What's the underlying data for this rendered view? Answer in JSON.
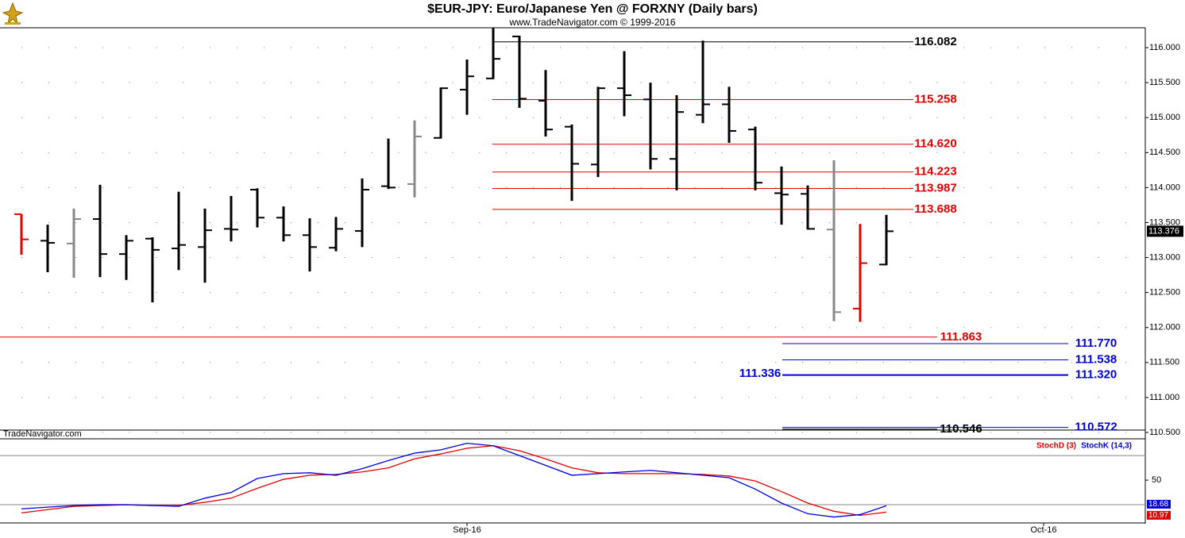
{
  "chart_data": [
    {
      "type": "ohlc",
      "title": "$EUR-JPY:  Euro/Japanese Yen @ FORXNY  (Daily bars)",
      "subtitle": "www.TradeNavigator.com © 1999-2016",
      "watermark": "TradeNavigator.com",
      "categories": [
        null,
        null,
        null,
        null,
        null,
        null,
        null,
        null,
        null,
        null,
        null,
        null,
        null,
        null,
        null,
        null,
        null,
        null,
        null,
        null,
        null,
        null,
        null,
        null,
        null,
        null,
        null,
        null,
        null,
        null,
        null,
        null,
        null,
        null
      ],
      "open": [
        113.62,
        113.24,
        113.2,
        113.55,
        113.05,
        113.27,
        113.13,
        113.15,
        113.41,
        113.97,
        113.57,
        113.32,
        113.14,
        113.38,
        114.02,
        114.05,
        114.71,
        115.4,
        115.56,
        116.16,
        115.24,
        114.87,
        114.33,
        115.42,
        115.26,
        114.41,
        115.04,
        115.19,
        114.83,
        113.92,
        113.91,
        113.4,
        112.27,
        112.9
      ],
      "high": [
        113.62,
        113.47,
        113.7,
        114.04,
        113.32,
        113.29,
        113.94,
        113.7,
        113.88,
        113.99,
        113.73,
        113.56,
        113.58,
        114.13,
        114.7,
        114.96,
        115.43,
        115.83,
        116.28,
        116.17,
        115.68,
        114.9,
        115.44,
        115.95,
        115.5,
        115.32,
        116.1,
        115.44,
        114.87,
        114.3,
        114.03,
        114.39,
        113.48,
        113.61
      ],
      "low": [
        113.04,
        112.79,
        112.71,
        112.72,
        112.68,
        112.36,
        112.82,
        112.64,
        113.23,
        113.43,
        113.23,
        112.8,
        113.09,
        113.15,
        113.98,
        113.86,
        114.7,
        115.04,
        115.55,
        115.14,
        114.73,
        113.81,
        114.15,
        115.02,
        114.26,
        113.96,
        114.92,
        114.64,
        113.96,
        113.47,
        113.4,
        112.09,
        112.08,
        112.89
      ],
      "close": [
        113.26,
        113.21,
        113.55,
        113.05,
        113.24,
        113.11,
        113.18,
        113.39,
        113.4,
        113.57,
        113.32,
        113.15,
        113.41,
        113.97,
        114.0,
        114.73,
        115.42,
        115.59,
        115.84,
        115.27,
        114.83,
        114.34,
        115.42,
        115.32,
        114.41,
        115.08,
        115.19,
        114.81,
        114.07,
        113.9,
        113.41,
        112.22,
        112.92,
        113.376
      ],
      "bar_colors": [
        "#e00000",
        "#000000",
        "#888888",
        "#000000",
        "#000000",
        "#000000",
        "#000000",
        "#000000",
        "#000000",
        "#000000",
        "#000000",
        "#000000",
        "#000000",
        "#000000",
        "#000000",
        "#888888",
        "#000000",
        "#000000",
        "#000000",
        "#000000",
        "#000000",
        "#000000",
        "#000000",
        "#000000",
        "#000000",
        "#000000",
        "#000000",
        "#000000",
        "#000000",
        "#000000",
        "#000000",
        "#888888",
        "#e00000",
        "#000000"
      ],
      "ylim": [
        110.443,
        116.284
      ],
      "yticks": [
        {
          "value": 116,
          "label": "116.000"
        },
        {
          "value": 115.5,
          "label": "115.500"
        },
        {
          "value": 115,
          "label": "115.000"
        },
        {
          "value": 114.5,
          "label": "114.500"
        },
        {
          "value": 114,
          "label": "114.000"
        },
        {
          "value": 113.5,
          "label": "113.500"
        },
        {
          "value": 113,
          "label": "113.000"
        },
        {
          "value": 112.5,
          "label": "112.500"
        },
        {
          "value": 112,
          "label": "112.000"
        },
        {
          "value": 111.5,
          "label": "111.500"
        },
        {
          "value": 111,
          "label": "111.000"
        },
        {
          "value": 110.5,
          "label": "110.500"
        }
      ],
      "grid": true,
      "levels": [
        {
          "value": 116.082,
          "color": "#000000"
        },
        {
          "value": 115.258,
          "color": "#e00000"
        },
        {
          "value": 114.62,
          "label": "114.620",
          "color": "#e00000"
        },
        {
          "value": 114.223,
          "color": "#e00000"
        },
        {
          "value": 113.987,
          "color": "#e00000"
        },
        {
          "value": 113.688,
          "color": "#e00000"
        },
        {
          "value": 111.863,
          "color": "#e00000"
        },
        {
          "value": 111.77,
          "label": "111.770",
          "color": "#0000dd"
        },
        {
          "value": 111.538,
          "color": "#0000dd"
        },
        {
          "value": 111.32,
          "label": "111.320",
          "color": "#0000dd"
        },
        {
          "value": 111.336,
          "color": "#0000dd"
        },
        {
          "value": 110.572,
          "color": "#0000dd"
        },
        {
          "value": 110.546,
          "color": "#000000"
        }
      ]
    },
    {
      "type": "line",
      "categories": [
        null,
        null,
        null,
        null,
        null,
        null,
        null,
        null,
        null,
        null,
        null,
        null,
        null,
        null,
        null,
        null,
        null,
        null,
        null,
        null,
        null,
        null,
        null,
        null,
        null,
        null,
        null,
        null,
        null,
        null,
        null,
        null,
        null,
        null
      ],
      "xlim": [
        -0.818,
        42.879
      ],
      "xticks": [
        {
          "value": 17,
          "label": "Sep-16"
        },
        {
          "value": 39,
          "label": "Oct-16"
        }
      ],
      "series": [
        {
          "name": "StochD (3)",
          "color": "#e00000",
          "values": [
            10,
            14,
            18,
            19,
            20,
            19,
            19,
            23,
            28,
            40,
            51,
            56,
            57,
            60,
            65,
            76,
            82,
            89,
            92,
            86,
            76,
            65,
            59,
            58,
            58,
            58,
            57,
            55,
            49,
            36,
            22,
            12,
            7,
            10.97
          ]
        },
        {
          "name": "StochK (14,3)",
          "color": "#0000dd",
          "values": [
            15,
            17,
            19,
            20,
            20,
            19,
            18,
            28,
            35,
            52,
            58,
            59,
            56,
            64,
            74,
            83,
            87,
            95,
            92,
            80,
            68,
            56,
            58,
            60,
            62,
            59,
            56,
            53,
            39,
            22,
            9,
            5,
            8,
            18.68
          ]
        }
      ],
      "ylim": [
        0,
        100
      ],
      "yticks": [
        50
      ],
      "hlines": [
        20,
        80
      ]
    }
  ]
}
